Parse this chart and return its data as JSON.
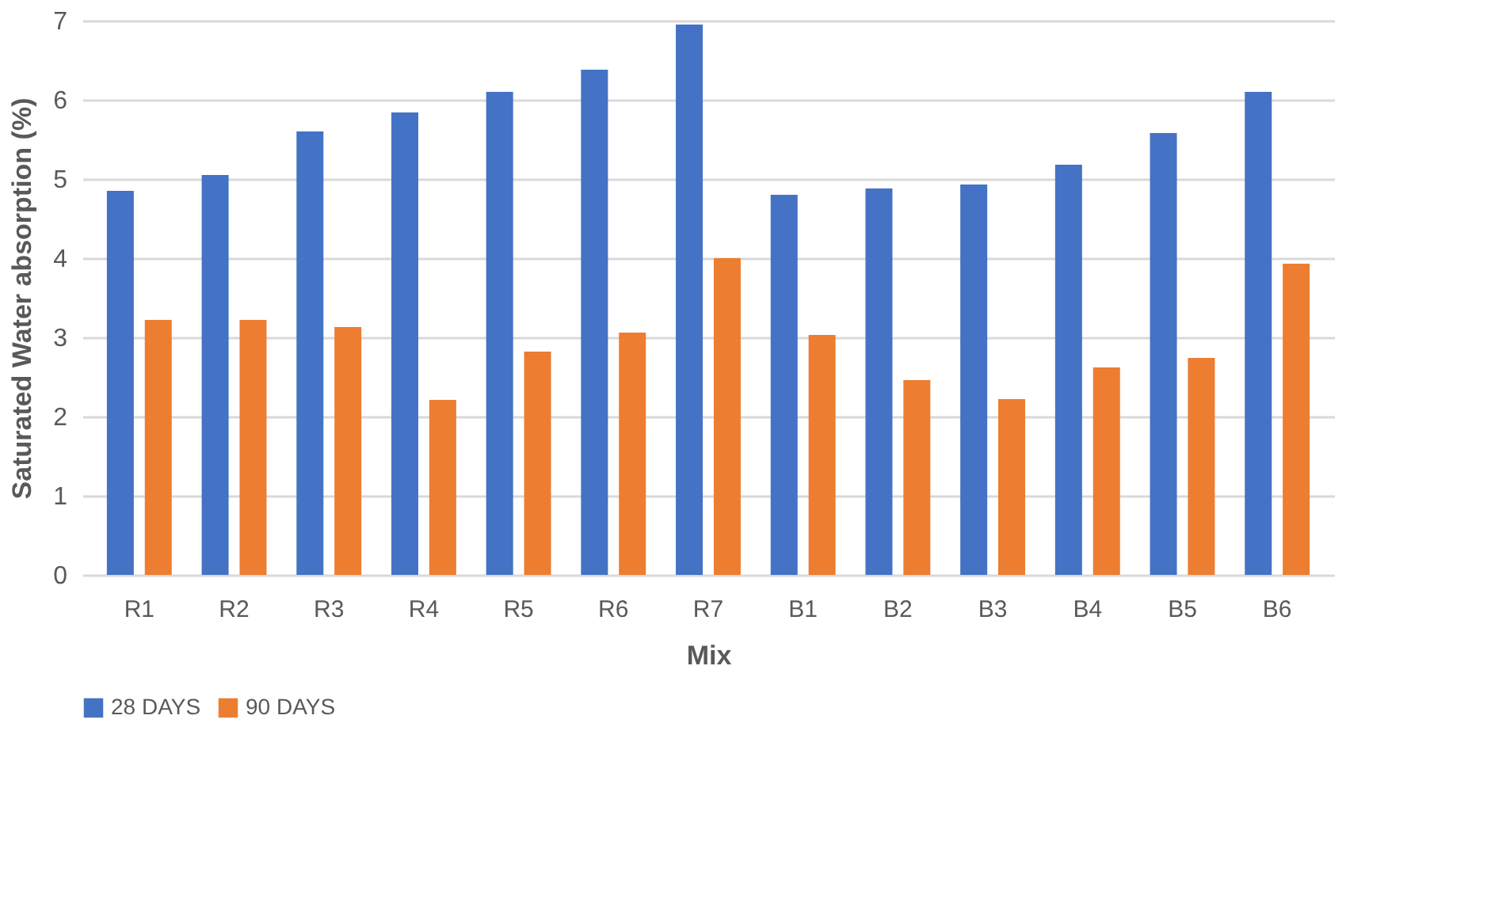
{
  "chart_data": {
    "type": "bar",
    "xlabel": "Mix",
    "ylabel": "Saturated Water absorption (%)",
    "categories": [
      "R1",
      "R2",
      "R3",
      "R4",
      "R5",
      "R6",
      "R7",
      "B1",
      "B2",
      "B3",
      "B4",
      "B5",
      "B6"
    ],
    "series": [
      {
        "name": "28 DAYS",
        "color": "#4472c4",
        "values": [
          4.85,
          5.05,
          5.6,
          5.84,
          6.1,
          6.38,
          6.95,
          4.8,
          4.88,
          4.93,
          5.18,
          5.58,
          6.1
        ]
      },
      {
        "name": "90 DAYS",
        "color": "#ed7d31",
        "values": [
          3.22,
          3.22,
          3.13,
          2.21,
          2.82,
          3.06,
          4.0,
          3.03,
          2.46,
          2.22,
          2.62,
          2.74,
          3.93
        ]
      }
    ],
    "ylim": [
      0,
      7
    ],
    "yticks": [
      0,
      1,
      2,
      3,
      4,
      5,
      6,
      7
    ],
    "grid": "y",
    "legend": "bottom"
  }
}
